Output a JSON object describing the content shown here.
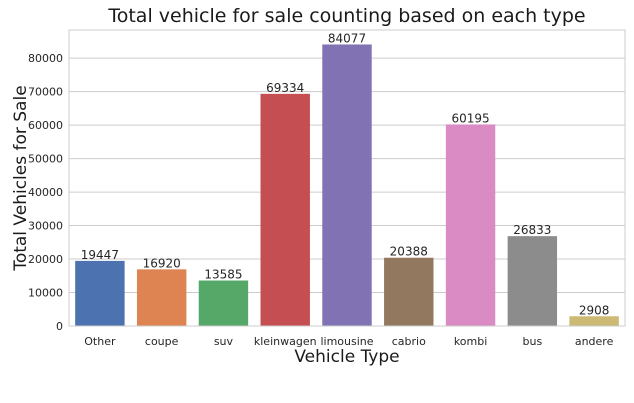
{
  "chart_data": {
    "type": "bar",
    "title": "Total vehicle for sale counting based on each type",
    "xlabel": "Vehicle Type",
    "ylabel": "Total Vehicles for Sale",
    "categories": [
      "Other",
      "coupe",
      "suv",
      "kleinwagen",
      "limousine",
      "cabrio",
      "kombi",
      "bus",
      "andere"
    ],
    "values": [
      19447,
      16920,
      13585,
      69334,
      84077,
      20388,
      60195,
      26833,
      2908
    ],
    "colors": [
      "#4c72b0",
      "#dd8452",
      "#55a868",
      "#c44e52",
      "#8172b3",
      "#937860",
      "#da8bc3",
      "#8c8c8c",
      "#ccb974"
    ],
    "ylim": [
      0,
      88400
    ],
    "yticks": [
      0,
      10000,
      20000,
      30000,
      40000,
      50000,
      60000,
      70000,
      80000
    ],
    "grid": "y",
    "legend": "none"
  }
}
